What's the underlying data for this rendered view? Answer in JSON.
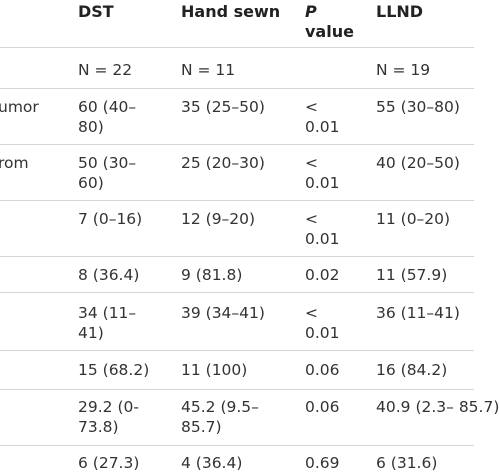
{
  "table": {
    "headers": {
      "dst": "DST",
      "hand_sewn": "Hand sewn",
      "p_italic": "P",
      "p_rest": "value",
      "llnd": "LLND"
    },
    "rows": [
      {
        "label": "",
        "dst": "N = 22",
        "hand_sewn": "N = 11",
        "p": "",
        "llnd": "N = 19"
      },
      {
        "label": "umor",
        "dst": "60 (40–\n80)",
        "hand_sewn": "35 (25–50)",
        "p": "<\n0.01",
        "llnd": "55 (30–80)"
      },
      {
        "label": "rom",
        "dst": "50 (30–\n60)",
        "hand_sewn": "25 (20–30)",
        "p": "<\n0.01",
        "llnd": "40 (20–50)"
      },
      {
        "label": "",
        "dst": "7 (0–16)",
        "hand_sewn": "12 (9–20)",
        "p": "<\n0.01",
        "llnd": "11 (0–20)"
      },
      {
        "label": "",
        "dst": "8 (36.4)",
        "hand_sewn": "9 (81.8)",
        "p": "0.02",
        "llnd": "11 (57.9)"
      },
      {
        "label": "",
        "dst": "34 (11–\n41)",
        "hand_sewn": "39 (34–41)",
        "p": "<\n0.01",
        "llnd": "36 (11–41)"
      },
      {
        "label": "",
        "dst": "15 (68.2)",
        "hand_sewn": "11 (100)",
        "p": "0.06",
        "llnd": "16 (84.2)"
      },
      {
        "label": "",
        "dst": "29.2 (0-\n73.8)",
        "hand_sewn": "45.2 (9.5–\n85.7)",
        "p": "0.06",
        "llnd": "40.9 (2.3–\n85.7)"
      },
      {
        "label": "",
        "dst": "6 (27.3)",
        "hand_sewn": "4 (36.4)",
        "p": "0.69",
        "llnd": "6 (31.6)"
      }
    ]
  }
}
